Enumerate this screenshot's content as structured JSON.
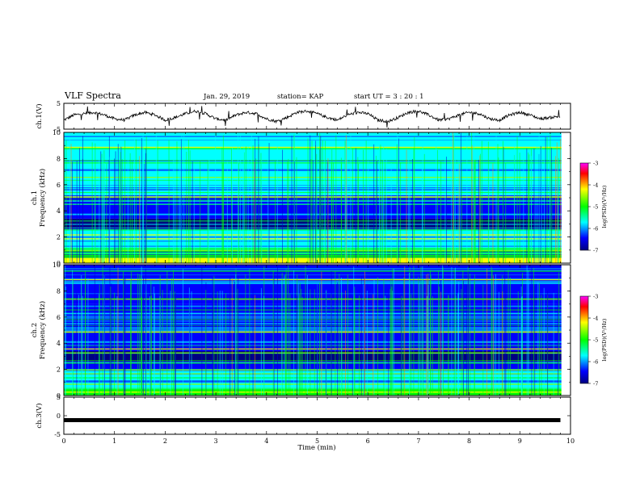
{
  "header": {
    "title": "VLF Spectra",
    "date": "Jan. 29, 2019",
    "station": "station= KAP",
    "start_ut": "start  UT =  3 : 20 : 1"
  },
  "colorbar": {
    "label": "log(PSD)(V²/Hz)",
    "ticks": [
      "-3",
      "-4",
      "-5",
      "-6",
      "-7"
    ],
    "colors": [
      "#ff00ff",
      "#ff0000",
      "#ffff00",
      "#00ff00",
      "#00ffff",
      "#0000ff",
      "#000080"
    ]
  },
  "chart_data": [
    {
      "type": "line",
      "name": "ch1-waveform",
      "ylabel": "ch.1(V)",
      "ylim": [
        -5,
        5
      ],
      "y_ticks": [
        "5",
        "-5"
      ],
      "xlim": [
        0,
        10
      ],
      "x_minutes": [
        0,
        0.2,
        0.4,
        0.6,
        0.8,
        1.0,
        1.2,
        1.4,
        1.6,
        1.8,
        2.0,
        2.2,
        2.4,
        2.6,
        2.8,
        3.0,
        3.2,
        3.4,
        3.6,
        3.8,
        4.0,
        4.2,
        4.4,
        4.6,
        4.8,
        5.0,
        5.2,
        5.4,
        5.6,
        5.8,
        6.0,
        6.2,
        6.4,
        6.6,
        6.8,
        7.0,
        7.2,
        7.4,
        7.6,
        7.8,
        8.0,
        8.2,
        8.4,
        8.6,
        8.8,
        9.0,
        9.2,
        9.4,
        9.6,
        9.8
      ],
      "y_volts": [
        -1.5,
        0.5,
        1.0,
        1.5,
        0.5,
        -1.0,
        -1.5,
        0.5,
        1.5,
        0.5,
        -1.5,
        -0.5,
        1.0,
        2.0,
        1.0,
        -1.0,
        -1.5,
        0.5,
        1.5,
        1.0,
        -1.0,
        -2.0,
        -0.5,
        1.5,
        2.0,
        1.0,
        -0.5,
        -1.5,
        0.5,
        1.5,
        1.0,
        -1.5,
        -2.0,
        -0.5,
        1.5,
        2.0,
        0.5,
        -1.5,
        -1.0,
        0.5,
        1.5,
        1.0,
        -1.0,
        -1.5,
        0.5,
        1.5,
        0.5,
        -1.0,
        -0.5,
        0.0
      ]
    },
    {
      "type": "heatmap",
      "name": "ch1-spectrogram",
      "ylabel": "ch.1\nFrequency (kHz)",
      "ylim": [
        0,
        10
      ],
      "y_ticks": [
        "0",
        "2",
        "4",
        "6",
        "8",
        "10"
      ],
      "xlim": [
        0,
        10
      ],
      "colorscale": "log(PSD)(V²/Hz)",
      "zlim": [
        -7,
        -3
      ],
      "bands_khz": [
        {
          "from": 0,
          "to": 0.4,
          "level": -4.5
        },
        {
          "from": 0.4,
          "to": 1.2,
          "level": -5.2
        },
        {
          "from": 1.2,
          "to": 2.6,
          "level": -5.4
        },
        {
          "from": 2.6,
          "to": 3.4,
          "level": -6.8
        },
        {
          "from": 3.4,
          "to": 5.2,
          "level": -6.0
        },
        {
          "from": 5.2,
          "to": 6.5,
          "level": -5.5
        },
        {
          "from": 6.5,
          "to": 10,
          "level": -5.7
        }
      ]
    },
    {
      "type": "heatmap",
      "name": "ch2-spectrogram",
      "ylabel": "ch.2\nFrequency (kHz)",
      "ylim": [
        0,
        10
      ],
      "y_ticks": [
        "0",
        "2",
        "4",
        "6",
        "8",
        "10"
      ],
      "xlim": [
        0,
        10
      ],
      "colorscale": "log(PSD)(V²/Hz)",
      "zlim": [
        -7,
        -3
      ],
      "bands_khz": [
        {
          "from": 0,
          "to": 0.6,
          "level": -4.8
        },
        {
          "from": 0.6,
          "to": 2.0,
          "level": -5.5
        },
        {
          "from": 2.0,
          "to": 2.6,
          "level": -6.0
        },
        {
          "from": 2.6,
          "to": 3.4,
          "level": -6.8
        },
        {
          "from": 3.4,
          "to": 5.0,
          "level": -6.0
        },
        {
          "from": 5.0,
          "to": 7.0,
          "level": -6.3
        },
        {
          "from": 7.0,
          "to": 10,
          "level": -6.0
        }
      ]
    },
    {
      "type": "line",
      "name": "ch3-waveform",
      "ylabel": "ch.3(V)",
      "ylim": [
        -5,
        5
      ],
      "y_ticks": [
        "5",
        "0",
        "-5"
      ],
      "xlim": [
        0,
        10
      ],
      "x_minutes": [
        0,
        9.8
      ],
      "y_volts": [
        -1.2,
        -1.2
      ]
    }
  ],
  "x_axis": {
    "label": "Time (min)",
    "ticks": [
      "0",
      "1",
      "2",
      "3",
      "4",
      "5",
      "6",
      "7",
      "8",
      "9",
      "10"
    ]
  }
}
